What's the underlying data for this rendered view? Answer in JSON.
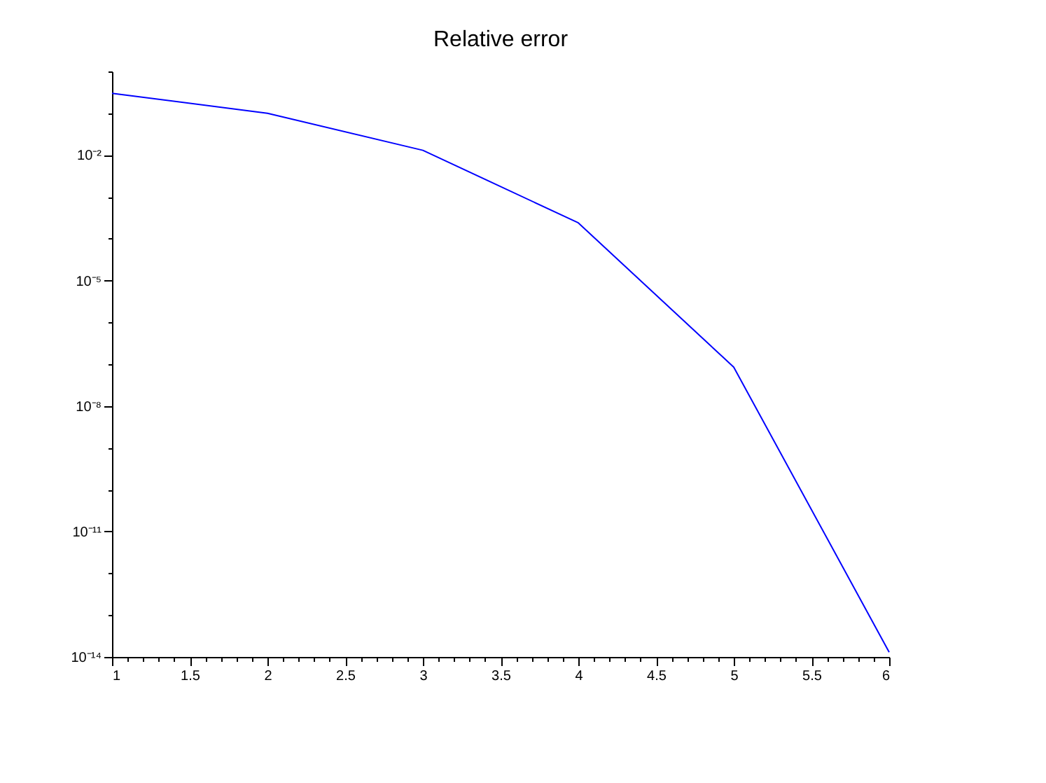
{
  "chart_data": {
    "type": "line",
    "title": "Relative error",
    "x": [
      1,
      2,
      3,
      4,
      5,
      6
    ],
    "series": [
      {
        "color": "#0000ff",
        "values": [
          0.3,
          0.1,
          0.013,
          0.00024,
          8.5e-08,
          1.3e-14
        ]
      }
    ],
    "log": true,
    "grid": false,
    "marker": "none",
    "line_style": "solid",
    "xlim": [
      1,
      6
    ],
    "xticks": [
      1,
      {
        "value": 1.1,
        "label": null
      },
      {
        "value": 1.2,
        "label": null
      },
      {
        "value": 1.3,
        "label": null
      },
      {
        "value": 1.4,
        "label": null
      },
      1.5,
      {
        "value": 1.6,
        "label": null
      },
      {
        "value": 1.7,
        "label": null
      },
      {
        "value": 1.8,
        "label": null
      },
      {
        "value": 1.9,
        "label": null
      },
      2,
      {
        "value": 2.1,
        "label": null
      },
      {
        "value": 2.2,
        "label": null
      },
      {
        "value": 2.3,
        "label": null
      },
      {
        "value": 2.4,
        "label": null
      },
      2.5,
      {
        "value": 2.6,
        "label": null
      },
      {
        "value": 2.7,
        "label": null
      },
      {
        "value": 2.8,
        "label": null
      },
      {
        "value": 2.9,
        "label": null
      },
      3,
      {
        "value": 3.1,
        "label": null
      },
      {
        "value": 3.2,
        "label": null
      },
      {
        "value": 3.3,
        "label": null
      },
      {
        "value": 3.4,
        "label": null
      },
      3.5,
      {
        "value": 3.6,
        "label": null
      },
      {
        "value": 3.7,
        "label": null
      },
      {
        "value": 3.8,
        "label": null
      },
      {
        "value": 3.9,
        "label": null
      },
      4,
      {
        "value": 4.1,
        "label": null
      },
      {
        "value": 4.2,
        "label": null
      },
      {
        "value": 4.3,
        "label": null
      },
      {
        "value": 4.4,
        "label": null
      },
      4.5,
      {
        "value": 4.6,
        "label": null
      },
      {
        "value": 4.7,
        "label": null
      },
      {
        "value": 4.8,
        "label": null
      },
      {
        "value": 4.9,
        "label": null
      },
      5,
      {
        "value": 5.1,
        "label": null
      },
      {
        "value": 5.2,
        "label": null
      },
      {
        "value": 5.3,
        "label": null
      },
      {
        "value": 5.4,
        "label": null
      },
      5.5,
      {
        "value": 5.6,
        "label": null
      },
      {
        "value": 5.7,
        "label": null
      },
      {
        "value": 5.8,
        "label": null
      },
      {
        "value": 5.9,
        "label": null
      },
      6
    ],
    "ylim": [
      1e-14,
      1
    ],
    "yticks": [
      {
        "value": 1e-14,
        "label": "10⁻¹⁴"
      },
      {
        "value": 1e-13,
        "label": null
      },
      {
        "value": 1e-12,
        "label": null
      },
      {
        "value": 1e-11,
        "label": "10⁻¹¹"
      },
      {
        "value": 1e-10,
        "label": null
      },
      {
        "value": 1e-09,
        "label": null
      },
      {
        "value": 1e-08,
        "label": "10⁻⁸"
      },
      {
        "value": 1e-07,
        "label": null
      },
      {
        "value": 1e-06,
        "label": null
      },
      {
        "value": 1e-05,
        "label": "10⁻⁵"
      },
      {
        "value": 0.0001,
        "label": null
      },
      {
        "value": 0.001,
        "label": null
      },
      {
        "value": 0.01,
        "label": "10⁻²"
      },
      {
        "value": 0.1,
        "label": null
      },
      {
        "value": 1,
        "label": null
      }
    ]
  }
}
